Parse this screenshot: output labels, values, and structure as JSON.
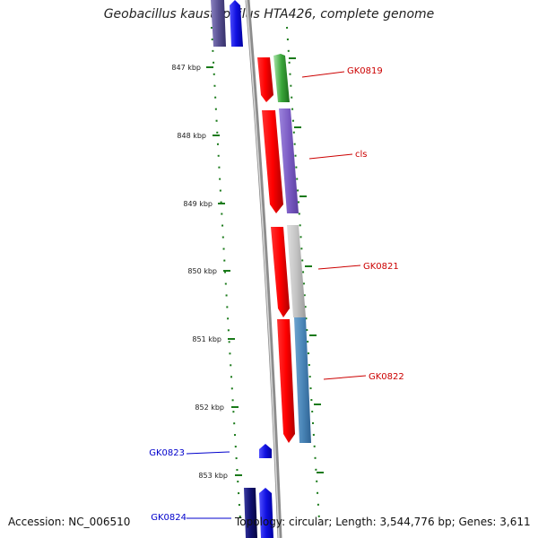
{
  "title": "Geobacillus kaustophilus HTA426, complete genome",
  "footer": {
    "accession": "Accession: NC_006510",
    "summary": "Topology: circular; Length: 3,544,776 bp; Genes: 3,611"
  },
  "ruler": {
    "ticks": [
      "847 kbp",
      "848 kbp",
      "849 kbp",
      "850 kbp",
      "851 kbp",
      "852 kbp",
      "853 kbp"
    ]
  },
  "genes": [
    {
      "label": "GK0819",
      "color": "#cc0000"
    },
    {
      "label": "cls",
      "color": "#cc0000"
    },
    {
      "label": "GK0821",
      "color": "#cc0000"
    },
    {
      "label": "GK0822",
      "color": "#cc0000"
    },
    {
      "label": "GK0823",
      "color": "#0000cc"
    },
    {
      "label": "GK0824",
      "color": "#0000cc"
    }
  ],
  "colors": {
    "backbone": "#8c8c8c",
    "tick_green": "#1a7a1a",
    "red_feature": "#e60000",
    "purple_feature": "#7b5cc4",
    "grey_feature": "#bdbdbd",
    "steelblue_feature": "#4a86b8",
    "green_feature": "#3aa63a",
    "blue_feature": "#1010e0",
    "navy_feature": "#101070"
  }
}
